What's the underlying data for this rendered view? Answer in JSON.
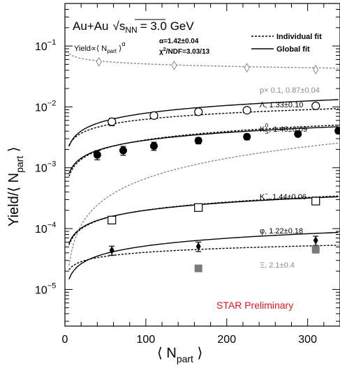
{
  "chart_data": {
    "type": "scatter",
    "title": {
      "system": "Au+Au",
      "energy_label": "s",
      "energy_sub": "NN",
      "energy_value": "= 3.0 GeV"
    },
    "fit_formula": {
      "prefix": "Yield∝⟨ N",
      "sub": "part",
      "suffix": " ⟩",
      "power": "α"
    },
    "global_fit": {
      "alpha": "α=1.42±0.04",
      "chi2_prefix": "χ",
      "chi2_sup": "2",
      "chi2_suffix": "/NDF=3.03/13"
    },
    "legend": [
      {
        "label": "Individual fit",
        "style": "dashed"
      },
      {
        "label": "Global fit",
        "style": "solid"
      }
    ],
    "watermark": "STAR Preliminary",
    "xlabel": {
      "left": "⟨ N",
      "sub": "part",
      "right": " ⟩"
    },
    "ylabel": {
      "left": "Yield/⟨ N",
      "sub": "part",
      "right": " ⟩"
    },
    "x_ticks": [
      "0",
      "100",
      "200",
      "300"
    ],
    "y_ticks": [
      {
        "base": "10",
        "exp": "−5"
      },
      {
        "base": "10",
        "exp": "−4"
      },
      {
        "base": "10",
        "exp": "−3"
      },
      {
        "base": "10",
        "exp": "−2"
      },
      {
        "base": "10",
        "exp": "−1"
      }
    ],
    "xlim": [
      0,
      340
    ],
    "ylim": [
      2.5e-06,
      0.5
    ],
    "log_y": true,
    "series": [
      {
        "name": "p×0.1",
        "label": "p× 0.1, 0.87±0.04",
        "marker": "open-diamond",
        "color": "#8a8a8a",
        "label_color": "#8a8a8a",
        "fits": "dashed-only",
        "fit_color": "#8a8a8a",
        "x": [
          42,
          135,
          225,
          310
        ],
        "y": [
          0.055,
          0.048,
          0.044,
          0.041
        ],
        "err": [
          0,
          0,
          0,
          0
        ],
        "fit_individual": {
          "A": 0.0925,
          "alpha": 0.87
        }
      },
      {
        "name": "Λ",
        "label": "Λ, 1.33±0.10",
        "marker": "open-circle",
        "color": "#000000",
        "label_color": "#000000",
        "fits": "both",
        "x": [
          58,
          110,
          165,
          225,
          310
        ],
        "y": [
          0.0057,
          0.0072,
          0.0083,
          0.0088,
          0.0104
        ],
        "err": [
          0.0008,
          0,
          0,
          0,
          0
        ],
        "fit_individual": {
          "A": 0.00137,
          "alpha": 1.33
        },
        "fit_global": {
          "A": 0.00114
        }
      },
      {
        "name": "K0S",
        "label_main": "K",
        "label_sub": "S",
        "label_sup": "0",
        "label_rest": ", 1.46±0.09",
        "marker": "filled-circle",
        "color": "#000000",
        "label_color": "#000000",
        "fits": "both",
        "x": [
          40,
          72,
          110,
          165,
          225,
          288,
          338
        ],
        "y": [
          0.00163,
          0.00192,
          0.00228,
          0.00279,
          0.00323,
          0.00358,
          0.00405
        ],
        "err": [
          0.00028,
          0.00032,
          0.00035,
          0.00032,
          0.00035,
          0.0002,
          0.0004
        ],
        "fit_individual": {
          "A": 0.000345,
          "alpha": 1.46
        },
        "fit_global": {
          "A": 0.000409
        }
      },
      {
        "name": "K−",
        "label_main": "K",
        "label_sup": "−",
        "label_rest": ", 1.44±0.06",
        "marker": "open-square",
        "color": "#000000",
        "label_color": "#000000",
        "fits": "both",
        "x": [
          58,
          165,
          310
        ],
        "y": [
          0.000138,
          0.000222,
          0.000283
        ],
        "err": [
          0,
          0,
          0
        ],
        "fit_individual": {
          "A": 2.65e-05,
          "alpha": 1.44
        },
        "fit_global": {
          "A": 2.89e-05
        }
      },
      {
        "name": "φ",
        "label": "φ, 1.22±0.18",
        "marker": "filled-diamond",
        "color": "#000000",
        "label_color": "#000000",
        "fits": "both",
        "x": [
          58,
          165,
          310
        ],
        "y": [
          4.4e-05,
          5.1e-05,
          6.4e-05
        ],
        "err": [
          7.5e-06,
          9e-06,
          1.1e-05
        ],
        "fit_individual": {
          "A": 1.48e-05,
          "alpha": 1.22
        },
        "fit_global": {
          "A": 7.5e-06
        }
      },
      {
        "name": "Ξ",
        "label": "Ξ, 2.1±0.4",
        "marker": "filled-square",
        "color": "#7a7a7a",
        "label_color": "#8a8a8a",
        "fits": "dashed-only",
        "fit_color": "#8a8a8a",
        "x": [
          165,
          310
        ],
        "y": [
          2.22e-05,
          4.55e-05
        ],
        "err": [
          2.5e-06,
          6e-06
        ],
        "fit_individual": {
          "A": 4.2e-06,
          "alpha": 2.1
        }
      }
    ]
  }
}
